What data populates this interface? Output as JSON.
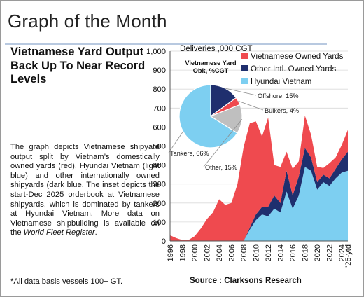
{
  "header": {
    "title": "Graph of the Month",
    "subtitle": "Vietnamese Yard Output Back Up To Near Record Levels"
  },
  "description": {
    "part1": "The graph depicts Vietnamese shipyard output split by Vietnam’s domestically owned yards (red), Hyundai Vietnam (light blue) and other internationally owned shipyards (dark blue. The inset depicts the start-Dec 2025 orderbook at Vietnamese shipyards, which is dominated by tankers at Hyundai Vietnam. More data on Vietnamese shipbuilding is available on the ",
    "link": "World Fleet Register",
    "part2": "."
  },
  "footnote": "*All data basis vessels 100+ GT.",
  "source": "Source : Clarksons Research",
  "colors": {
    "vietnamese_owned": "#ef4a4f",
    "other_intl": "#1f2f6e",
    "hyundai_vietnam": "#7dcff1",
    "offshore": "#1f2f6e",
    "bulkers": "#ef4a4f",
    "other": "#bfbfbf",
    "tankers": "#7dcff1"
  },
  "chart_data": [
    {
      "type": "area",
      "stacked": true,
      "ylabel": "Deliveries ,000 CGT",
      "ylim": [
        0,
        1000
      ],
      "yticks": [
        0,
        100,
        200,
        300,
        400,
        500,
        600,
        700,
        800,
        900,
        1000
      ],
      "ytick_labels": [
        "0",
        "100",
        "200",
        "300",
        "400",
        "500",
        "600",
        "700",
        "800",
        "900",
        "1,000"
      ],
      "grid": true,
      "legend": "top-right",
      "x": [
        1996,
        1997,
        1998,
        1999,
        2000,
        2001,
        2002,
        2003,
        2004,
        2005,
        2006,
        2007,
        2008,
        2009,
        2010,
        2011,
        2012,
        2013,
        2014,
        2015,
        2016,
        2017,
        2018,
        2019,
        2020,
        2021,
        2022,
        2023,
        2024,
        2025
      ],
      "x_tick_labels": [
        "1996",
        "1998",
        "2000",
        "2002",
        "2004",
        "2006",
        "2008",
        "2010",
        "2012",
        "2014",
        "2016",
        "2018",
        "2020",
        "2022",
        "2024",
        "'25-ytd"
      ],
      "series": [
        {
          "name": "Hyundai Vietnam",
          "values": [
            0,
            0,
            0,
            0,
            0,
            0,
            0,
            0,
            0,
            0,
            0,
            0,
            0,
            60,
            110,
            140,
            130,
            170,
            150,
            260,
            170,
            240,
            390,
            370,
            270,
            310,
            290,
            330,
            360,
            370
          ]
        },
        {
          "name": "Other Intl. Owned Yards",
          "values": [
            0,
            0,
            0,
            0,
            0,
            0,
            0,
            0,
            0,
            0,
            0,
            0,
            0,
            10,
            30,
            40,
            50,
            70,
            50,
            110,
            70,
            100,
            100,
            70,
            40,
            40,
            40,
            50,
            70,
            100
          ]
        },
        {
          "name": "Vietnamese Owned Yards",
          "values": [
            30,
            15,
            5,
            5,
            25,
            65,
            115,
            150,
            220,
            190,
            200,
            300,
            495,
            550,
            490,
            370,
            470,
            160,
            190,
            100,
            140,
            80,
            170,
            120,
            80,
            35,
            80,
            60,
            75,
            115
          ]
        }
      ]
    },
    {
      "type": "pie",
      "title": "Vietnamese Yard Obk, %CGT",
      "slices": [
        {
          "name": "Offshore",
          "value": 15,
          "label": "Offshore, 15%"
        },
        {
          "name": "Bulkers",
          "value": 4,
          "label": "Bulkers, 4%"
        },
        {
          "name": "Other",
          "value": 15,
          "label": "Other, 15%"
        },
        {
          "name": "Tankers",
          "value": 66,
          "label": "Tankers, 66%"
        }
      ]
    }
  ]
}
